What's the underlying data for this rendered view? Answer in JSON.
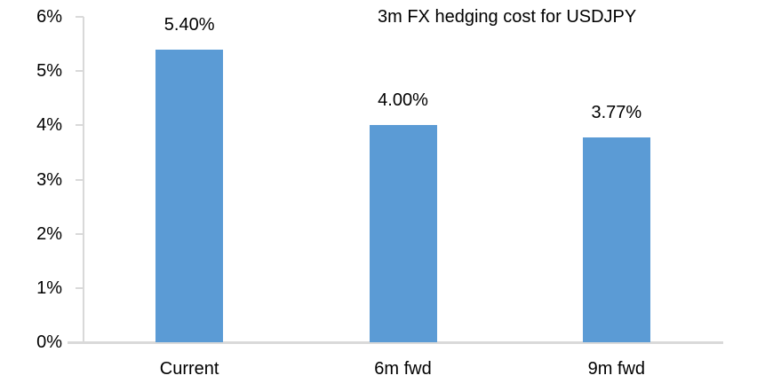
{
  "chart_data": {
    "type": "bar",
    "title": "3m FX hedging cost for USDJPY",
    "categories": [
      "Current",
      "6m fwd",
      "9m fwd"
    ],
    "values": [
      5.4,
      4.0,
      3.77
    ],
    "data_labels": [
      "5.40%",
      "4.00%",
      "3.77%"
    ],
    "y_tick_labels": [
      "0%",
      "1%",
      "2%",
      "3%",
      "4%",
      "5%",
      "6%"
    ],
    "ylim": [
      0,
      6
    ],
    "xlabel": "",
    "ylabel": "",
    "grid": false,
    "legend_position": "none",
    "bar_color": "#5B9BD5",
    "axis_color": "#D9D9D9",
    "text_color": "#000000"
  }
}
